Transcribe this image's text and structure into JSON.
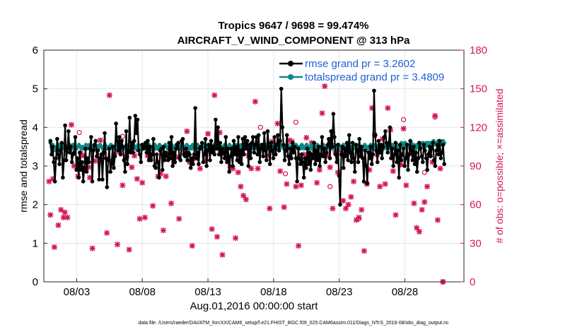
{
  "colors": {
    "rmse": "#000000",
    "spread": "#0b8a86",
    "obs": "#d3175a",
    "legend_text": "#1f5fd6",
    "axis": "#262626"
  },
  "chart_data": {
    "type": "line",
    "title_line1": "Tropics 9647 / 9698 = 99.474%",
    "title_line2": "AIRCRAFT_V_WIND_COMPONENT @ 313 hPa",
    "xlabel": "Aug.01,2016 00:00:00 start",
    "ylabel_left": "rmse and totalspread",
    "ylabel_right": "# of obs: o=possible; ×=assimilated",
    "footnote": "data file: /Users/raeder/DAI/ATM_forcXX/CAM6_setup/f.e21.FHIST_BGC.f09_025.CAM6assim.011/Diags_NTrS_2016-08/obs_diag_output.nc",
    "xlim": [
      0.5,
      32.5
    ],
    "ylim_left": [
      0,
      6
    ],
    "ylim_right": [
      0,
      180
    ],
    "yticks_left": [
      "0",
      "1",
      "2",
      "3",
      "4",
      "5",
      "6"
    ],
    "yticks_right": [
      "0",
      "30",
      "60",
      "90",
      "120",
      "150",
      "180"
    ],
    "xticks": [
      {
        "x": 3,
        "label": "08/03"
      },
      {
        "x": 8,
        "label": "08/08"
      },
      {
        "x": 13,
        "label": "08/13"
      },
      {
        "x": 18,
        "label": "08/18"
      },
      {
        "x": 23,
        "label": "08/23"
      },
      {
        "x": 28,
        "label": "08/28"
      }
    ],
    "grid": true,
    "legend": {
      "position": "top-right",
      "entries": [
        {
          "key": "rmse",
          "label": "rmse grand pr = 3.2602"
        },
        {
          "key": "spread",
          "label": "totalspread grand pr = 3.4809"
        }
      ]
    },
    "series": [
      {
        "key": "rmse",
        "name": "rmse grand pr = 3.2602",
        "values": [
          3.65,
          3.3,
          3.5,
          3.1,
          2.6,
          3.2,
          3.7,
          3.3,
          3.05,
          3.4,
          3.6,
          2.7,
          3.15,
          4.05,
          3.15,
          3.45,
          3.9,
          3.35,
          3.5,
          3.1,
          3.3,
          3.35,
          3.75,
          2.9,
          3.2,
          2.7,
          3.35,
          2.9,
          3.1,
          2.6,
          2.95,
          3.45,
          2.85,
          3.2,
          3.1,
          3.45,
          3.75,
          2.6,
          3.4,
          3.55,
          3.65,
          3.25,
          3.4,
          2.65,
          3.2,
          3.3,
          2.65,
          3.35,
          3.85,
          3.2,
          2.45,
          3.15,
          3.45,
          2.85,
          3.05,
          3.5,
          2.95,
          3.25,
          4.1,
          3.65,
          3.4,
          3.75,
          3.3,
          3.65,
          3.5,
          3.15,
          2.85,
          3.9,
          3.05,
          3.4,
          4.25,
          3.35,
          3.6,
          3.35,
          3.65,
          4.3,
          3.85,
          4.2,
          3.4,
          3.3,
          3.1,
          3.55,
          3.45,
          3.5,
          3.6,
          3.35,
          3.65,
          3.15,
          3.5,
          3.15,
          3.3,
          3.7,
          3.0,
          2.95,
          3.3,
          3.1,
          2.7,
          3.4,
          3.45,
          2.9,
          3.5,
          3.15,
          3.35,
          3.25,
          3.15,
          3.6,
          3.2,
          3.75,
          3.0,
          3.35,
          3.1,
          3.45,
          3.55,
          3.6,
          3.2,
          3.15,
          3.65,
          3.7,
          3.3,
          3.25,
          3.45,
          3.15,
          3.35,
          3.3,
          2.95,
          3.2,
          3.05,
          3.3,
          4.5,
          3.2,
          3.35,
          3.05,
          3.45,
          3.5,
          3.6,
          3.1,
          3.3,
          3.7,
          3.0,
          3.4,
          3.55,
          3.15,
          3.65,
          3.35,
          3.5,
          3.3,
          4.2,
          3.45,
          4.0,
          3.3,
          3.6,
          3.1,
          3.45,
          3.35,
          3.2,
          3.75,
          3.1,
          3.45,
          2.85,
          3.25,
          3.45,
          3.0,
          3.65,
          3.3,
          3.5,
          3.15,
          3.75,
          3.1,
          3.4,
          3.05,
          3.7,
          3.3,
          3.75,
          3.45,
          3.65,
          3.0,
          3.55,
          3.2,
          3.6,
          3.75,
          3.35,
          3.55,
          3.75,
          3.3,
          3.8,
          3.1,
          3.45,
          3.55,
          3.25,
          3.85,
          3.4,
          3.15,
          3.9,
          3.5,
          3.05,
          3.6,
          3.4,
          3.2,
          3.75,
          3.3,
          3.55,
          3.8,
          3.4,
          3.65,
          5.0,
          4.0,
          3.55,
          3.15,
          3.4,
          3.8,
          3.25,
          3.05,
          3.45,
          3.2,
          3.6,
          3.35,
          3.5,
          3.2,
          2.6,
          3.45,
          3.2,
          3.05,
          3.3,
          3.1,
          2.7,
          3.2,
          2.95,
          3.45,
          3.05,
          3.35,
          2.9,
          3.3,
          3.2,
          3.6,
          3.05,
          3.4,
          3.15,
          3.5,
          3.0,
          3.3,
          3.75,
          3.25,
          3.45,
          3.1,
          3.35,
          3.55,
          3.7,
          3.2,
          3.9,
          3.5,
          4.35,
          3.75,
          3.3,
          3.1,
          3.55,
          2.75,
          2.0,
          3.3,
          3.5,
          2.95,
          3.45,
          3.25,
          3.6,
          3.15,
          3.8,
          3.35,
          3.1,
          3.6,
          3.2,
          2.85,
          3.55,
          3.4,
          3.1,
          3.7,
          3.25,
          3.5,
          3.2,
          2.6,
          3.4,
          3.0,
          2.55,
          3.35,
          3.2,
          3.5,
          3.05,
          3.3,
          4.95,
          3.8,
          3.4,
          3.1,
          3.65,
          3.35,
          3.55,
          3.2,
          3.5,
          3.75,
          3.9,
          3.6,
          3.35,
          3.55,
          4.0,
          3.2,
          3.45,
          3.0,
          3.3,
          3.6,
          3.1,
          3.4,
          2.7,
          3.55,
          3.15,
          3.3,
          3.45,
          3.0,
          3.2,
          3.55,
          2.9,
          3.3,
          3.65,
          3.4,
          3.15,
          3.5,
          3.05,
          3.35,
          2.85,
          3.2,
          3.6,
          3.45,
          3.25,
          3.1,
          3.55,
          3.4,
          3.2,
          2.9,
          3.3,
          3.5,
          3.25,
          3.45,
          3.6,
          3.15,
          3.0,
          3.4,
          3.55,
          3.3,
          3.65,
          3.2,
          3.35,
          3.55,
          3.05
        ]
      },
      {
        "key": "spread",
        "name": "totalspread grand pr = 3.4809",
        "values": [
          3.6,
          3.5,
          3.55,
          3.4,
          3.45,
          3.5,
          3.45,
          3.55,
          3.5,
          3.45,
          3.55,
          3.5,
          3.45,
          3.4,
          3.5,
          3.45,
          3.55,
          3.5,
          3.45,
          3.55,
          3.5,
          3.5,
          3.45,
          3.5,
          3.55,
          3.5,
          3.45,
          3.5,
          3.45,
          3.5,
          3.55,
          3.45,
          3.5,
          3.55,
          3.5,
          3.45,
          3.5,
          3.55,
          3.45,
          3.5,
          3.45,
          3.5,
          3.55,
          3.5,
          3.45,
          3.5,
          3.55,
          3.5,
          3.45,
          3.5,
          3.45,
          3.55,
          3.5,
          3.45,
          3.5,
          3.55,
          3.45,
          3.5,
          3.45,
          3.55,
          3.5,
          3.5,
          3.45,
          3.5,
          3.55,
          3.5,
          3.45,
          3.5,
          3.5,
          3.45,
          3.55,
          3.5,
          3.45,
          3.5,
          3.55,
          3.45,
          3.5,
          3.5,
          3.55,
          3.45,
          3.5,
          3.45,
          3.5,
          3.55,
          3.5,
          3.45,
          3.5,
          3.45,
          3.55,
          3.5,
          3.45,
          3.5,
          3.55,
          3.45,
          3.5,
          3.45,
          3.5,
          3.55,
          3.5,
          3.45,
          3.5,
          3.45,
          3.55,
          3.5,
          3.45,
          3.5,
          3.55,
          3.45,
          3.5,
          3.5,
          3.45,
          3.55,
          3.5,
          3.45,
          3.5,
          3.55,
          3.5,
          3.45,
          3.5,
          3.45,
          3.55,
          3.5,
          3.45,
          3.5,
          3.55,
          3.45,
          3.5,
          3.45,
          3.5,
          3.55,
          3.5,
          3.45,
          3.5,
          3.55,
          3.5,
          3.45,
          3.5,
          3.45,
          3.55,
          3.5,
          3.45,
          3.5,
          3.55,
          3.45,
          3.5,
          3.5,
          3.45,
          3.55,
          3.5,
          3.45,
          3.5,
          3.55,
          3.45,
          3.5,
          3.45,
          3.5,
          3.55,
          3.5,
          3.45,
          3.5,
          3.45,
          3.55,
          3.5,
          3.45,
          3.5,
          3.55,
          3.5,
          3.45,
          3.5,
          3.45,
          3.55,
          3.5,
          3.45,
          3.5,
          3.55,
          3.45,
          3.5,
          3.45,
          3.55,
          3.5,
          3.45,
          3.5,
          3.55,
          3.5,
          3.45,
          3.5,
          3.55,
          3.45,
          3.5,
          3.5,
          3.45,
          3.55,
          3.5,
          3.45,
          3.5,
          3.55,
          3.5,
          3.45,
          3.5,
          3.45,
          3.55,
          3.5,
          3.45,
          3.5,
          3.55,
          3.45,
          3.5,
          3.55,
          3.5,
          3.45,
          3.5,
          3.45,
          3.55,
          3.5,
          3.45,
          3.5,
          3.55,
          3.5,
          3.45,
          3.5,
          3.45,
          3.55,
          3.5,
          3.45,
          3.5,
          3.55,
          3.45,
          3.5,
          3.5,
          3.45,
          3.55,
          3.5,
          3.45,
          3.5,
          3.55,
          3.5,
          3.45,
          3.5,
          3.45,
          3.55,
          3.5,
          3.45,
          3.5,
          3.55,
          3.45,
          3.5,
          3.45,
          3.55,
          3.5,
          3.45,
          3.5,
          3.55,
          3.5,
          3.45,
          3.5,
          3.45,
          3.55,
          3.5,
          3.45,
          3.5,
          3.55,
          3.45,
          3.5,
          3.45,
          3.5,
          3.55,
          3.5,
          3.45,
          3.5,
          3.45,
          3.55,
          3.5,
          3.45,
          3.5,
          3.55,
          3.5,
          3.45,
          3.5,
          3.45,
          3.55,
          3.5,
          3.45,
          3.5,
          3.55,
          3.45,
          3.5,
          3.5,
          3.45,
          3.55,
          3.5,
          3.45,
          3.5,
          3.55,
          3.5,
          3.45,
          3.55,
          3.6,
          3.5,
          3.55,
          3.6,
          3.5,
          3.55,
          3.5,
          3.55,
          3.6,
          3.5,
          3.55,
          3.5,
          3.45,
          3.55,
          3.5,
          3.6,
          3.55,
          3.5,
          3.6,
          3.55,
          3.5,
          3.6,
          3.55,
          3.6,
          3.55,
          3.6,
          3.55,
          3.65,
          3.6,
          3.55,
          3.6,
          3.65,
          3.6,
          3.55,
          3.6,
          3.65,
          3.6
        ]
      }
    ],
    "obs_used": [
      [
        0.9,
        78
      ],
      [
        1.0,
        52
      ],
      [
        1.2,
        80
      ],
      [
        1.3,
        27
      ],
      [
        1.6,
        44
      ],
      [
        1.8,
        56
      ],
      [
        2.0,
        50
      ],
      [
        2.1,
        54
      ],
      [
        2.3,
        50
      ],
      [
        2.6,
        122
      ],
      [
        2.8,
        90
      ],
      [
        3.1,
        82
      ],
      [
        3.3,
        100
      ],
      [
        3.5,
        98
      ],
      [
        3.7,
        87
      ],
      [
        3.9,
        89
      ],
      [
        4.0,
        81
      ],
      [
        4.2,
        26
      ],
      [
        4.4,
        94
      ],
      [
        4.6,
        105
      ],
      [
        4.8,
        110
      ],
      [
        4.9,
        96
      ],
      [
        5.1,
        100
      ],
      [
        5.3,
        38
      ],
      [
        5.5,
        145
      ],
      [
        5.7,
        94
      ],
      [
        5.9,
        100
      ],
      [
        6.1,
        29
      ],
      [
        6.3,
        101
      ],
      [
        6.5,
        75
      ],
      [
        6.8,
        97
      ],
      [
        7.0,
        25
      ],
      [
        7.2,
        89
      ],
      [
        7.4,
        98
      ],
      [
        7.6,
        80
      ],
      [
        7.8,
        49
      ],
      [
        8.0,
        77
      ],
      [
        8.2,
        50
      ],
      [
        8.4,
        98
      ],
      [
        8.6,
        96
      ],
      [
        8.8,
        59
      ],
      [
        9.0,
        104
      ],
      [
        9.2,
        82
      ],
      [
        9.4,
        84
      ],
      [
        9.6,
        40
      ],
      [
        9.8,
        82
      ],
      [
        10.0,
        99
      ],
      [
        10.2,
        61
      ],
      [
        10.4,
        93
      ],
      [
        10.6,
        97
      ],
      [
        10.8,
        49
      ],
      [
        11.0,
        106
      ],
      [
        11.2,
        101
      ],
      [
        11.4,
        117
      ],
      [
        11.6,
        93
      ],
      [
        11.8,
        28
      ],
      [
        12.0,
        96
      ],
      [
        12.2,
        100
      ],
      [
        12.4,
        88
      ],
      [
        12.6,
        106
      ],
      [
        12.8,
        94
      ],
      [
        13.0,
        115
      ],
      [
        13.3,
        41
      ],
      [
        13.5,
        145
      ],
      [
        13.7,
        35
      ],
      [
        13.9,
        116
      ],
      [
        14.1,
        21
      ],
      [
        14.3,
        100
      ],
      [
        14.5,
        96
      ],
      [
        14.7,
        89
      ],
      [
        14.9,
        88
      ],
      [
        15.1,
        34
      ],
      [
        15.3,
        85
      ],
      [
        15.5,
        74
      ],
      [
        15.7,
        67
      ],
      [
        15.9,
        64
      ],
      [
        16.1,
        98
      ],
      [
        16.3,
        88
      ],
      [
        16.6,
        140
      ],
      [
        16.8,
        88
      ],
      [
        17.0,
        104
      ],
      [
        17.2,
        104
      ],
      [
        17.5,
        98
      ],
      [
        17.7,
        57
      ],
      [
        17.9,
        109
      ],
      [
        18.1,
        104
      ],
      [
        18.3,
        123
      ],
      [
        18.5,
        86
      ],
      [
        18.8,
        58
      ],
      [
        19.0,
        76
      ],
      [
        19.2,
        110
      ],
      [
        19.4,
        109
      ],
      [
        19.7,
        74
      ],
      [
        19.9,
        28
      ],
      [
        20.1,
        75
      ],
      [
        20.3,
        99
      ],
      [
        20.5,
        112
      ],
      [
        20.7,
        96
      ],
      [
        20.9,
        108
      ],
      [
        21.1,
        103
      ],
      [
        21.3,
        77
      ],
      [
        21.5,
        87
      ],
      [
        21.7,
        131
      ],
      [
        21.9,
        152
      ],
      [
        22.1,
        98
      ],
      [
        22.3,
        89
      ],
      [
        22.5,
        57
      ],
      [
        22.7,
        101
      ],
      [
        22.9,
        85
      ],
      [
        23.1,
        102
      ],
      [
        23.3,
        63
      ],
      [
        23.5,
        57
      ],
      [
        23.7,
        60
      ],
      [
        23.9,
        66
      ],
      [
        24.1,
        78
      ],
      [
        24.3,
        48
      ],
      [
        24.5,
        50
      ],
      [
        24.7,
        56
      ],
      [
        24.9,
        24
      ],
      [
        25.1,
        76
      ],
      [
        25.3,
        87
      ],
      [
        25.5,
        135
      ],
      [
        25.7,
        114
      ],
      [
        25.9,
        99
      ],
      [
        26.1,
        74
      ],
      [
        26.3,
        111
      ],
      [
        26.5,
        76
      ],
      [
        26.7,
        135
      ],
      [
        26.9,
        118
      ],
      [
        27.1,
        86
      ],
      [
        27.3,
        52
      ],
      [
        27.5,
        103
      ],
      [
        27.7,
        91
      ],
      [
        27.9,
        119
      ],
      [
        28.1,
        75
      ],
      [
        28.3,
        105
      ],
      [
        28.5,
        101
      ],
      [
        28.7,
        61
      ],
      [
        28.9,
        42
      ],
      [
        29.1,
        39
      ],
      [
        29.3,
        56
      ],
      [
        29.5,
        62
      ],
      [
        29.7,
        74
      ],
      [
        29.9,
        99
      ],
      [
        30.1,
        93
      ],
      [
        30.3,
        129
      ],
      [
        30.5,
        48
      ],
      [
        30.7,
        88
      ],
      [
        30.9,
        0
      ]
    ],
    "obs_possible": [
      [
        3.2,
        116
      ],
      [
        6.5,
        113
      ],
      [
        7.4,
        102
      ],
      [
        12.2,
        99
      ],
      [
        15.3,
        100
      ],
      [
        17.0,
        120
      ],
      [
        18.9,
        84
      ],
      [
        19.4,
        104
      ],
      [
        19.7,
        124
      ],
      [
        22.3,
        74
      ],
      [
        24.5,
        49
      ],
      [
        27.9,
        126
      ],
      [
        29.5,
        85
      ],
      [
        30.3,
        128
      ],
      [
        30.9,
        0
      ]
    ]
  }
}
